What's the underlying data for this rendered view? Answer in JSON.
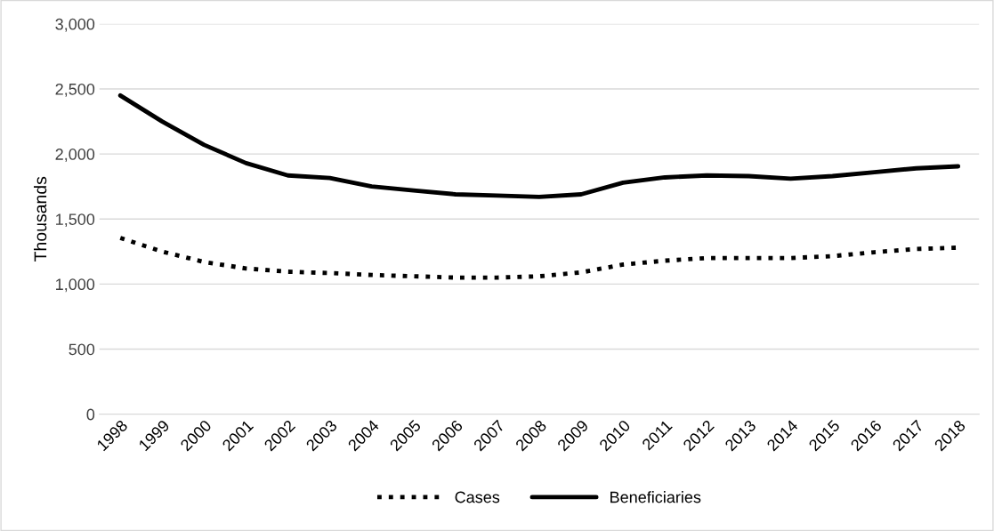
{
  "chart_data": {
    "type": "line",
    "ylabel": "Thousands",
    "categories": [
      "1998",
      "1999",
      "2000",
      "2001",
      "2002",
      "2003",
      "2004",
      "2005",
      "2006",
      "2007",
      "2008",
      "2009",
      "2010",
      "2011",
      "2012",
      "2013",
      "2014",
      "2015",
      "2016",
      "2017",
      "2018"
    ],
    "series": [
      {
        "name": "Cases",
        "color": "#000000",
        "line_style": "dotted",
        "values": [
          1355,
          1250,
          1170,
          1120,
          1095,
          1085,
          1070,
          1060,
          1050,
          1050,
          1060,
          1090,
          1150,
          1180,
          1200,
          1200,
          1200,
          1215,
          1245,
          1270,
          1280
        ]
      },
      {
        "name": "Beneficiaries",
        "color": "#000000",
        "line_style": "solid",
        "values": [
          2450,
          2250,
          2070,
          1930,
          1835,
          1815,
          1750,
          1720,
          1690,
          1680,
          1670,
          1690,
          1780,
          1820,
          1835,
          1830,
          1810,
          1830,
          1860,
          1890,
          1905
        ]
      }
    ],
    "ylim": [
      0,
      3000
    ],
    "yticks": [
      {
        "value": 0,
        "label": "0"
      },
      {
        "value": 500,
        "label": "500"
      },
      {
        "value": 1000,
        "label": "1,000"
      },
      {
        "value": 1500,
        "label": "1,500"
      },
      {
        "value": 2000,
        "label": "2,000"
      },
      {
        "value": 2500,
        "label": "2,500"
      },
      {
        "value": 3000,
        "label": "3,000"
      }
    ],
    "grid": "y",
    "legend": "bottom"
  }
}
